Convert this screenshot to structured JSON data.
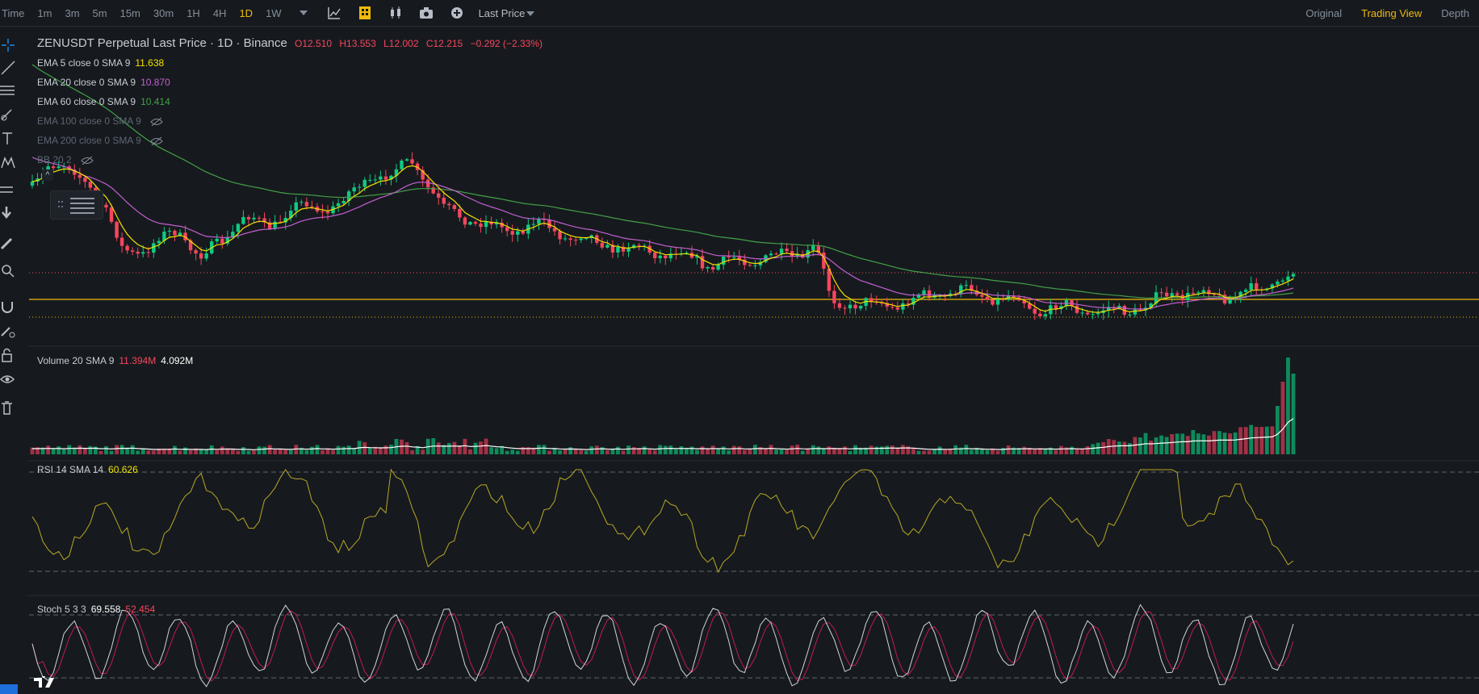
{
  "toolbar": {
    "time_label": "Time",
    "intervals": [
      "1m",
      "3m",
      "5m",
      "15m",
      "30m",
      "1H",
      "4H",
      "1D",
      "1W"
    ],
    "active_interval": "1D",
    "price_type": "Last Price",
    "views": [
      "Original",
      "Trading View",
      "Depth"
    ],
    "active_view": "Trading View"
  },
  "main": {
    "title": "ZENUSDT Perpetual Last Price · 1D · Binance",
    "open": "O12.510",
    "high": "H13.553",
    "low": "L12.002",
    "close": "C12.215",
    "change": "−0.292 (−2.33%)",
    "indicators": [
      {
        "label": "EMA 5 close 0 SMA 9",
        "value": "11.638",
        "color": "#f0e000"
      },
      {
        "label": "EMA 20 close 0 SMA 9",
        "value": "10.870",
        "color": "#c35fd0"
      },
      {
        "label": "EMA 60 close 0 SMA 9",
        "value": "10.414",
        "color": "#43a047"
      },
      {
        "label": "EMA 100 close 0 SMA 9",
        "value": "",
        "color": "#5e6673"
      },
      {
        "label": "EMA 200 close 0 SMA 9",
        "value": "",
        "color": "#5e6673"
      },
      {
        "label": "BB 20 2",
        "value": "",
        "color": "#5e6673"
      }
    ]
  },
  "volume": {
    "label": "Volume 20 SMA 9",
    "value1": "11.394M",
    "value2": "4.092M"
  },
  "rsi": {
    "label": "RSI 14 SMA 14",
    "value": "60.626"
  },
  "stoch": {
    "label": "Stoch 5 3 3",
    "k": "69.558",
    "d": "52.454"
  },
  "colors": {
    "up": "#0ecb81",
    "down": "#f6465d",
    "accent": "#f0b90b",
    "ema5": "#f0e000",
    "ema20": "#c35fd0",
    "ema60": "#43a047"
  }
}
